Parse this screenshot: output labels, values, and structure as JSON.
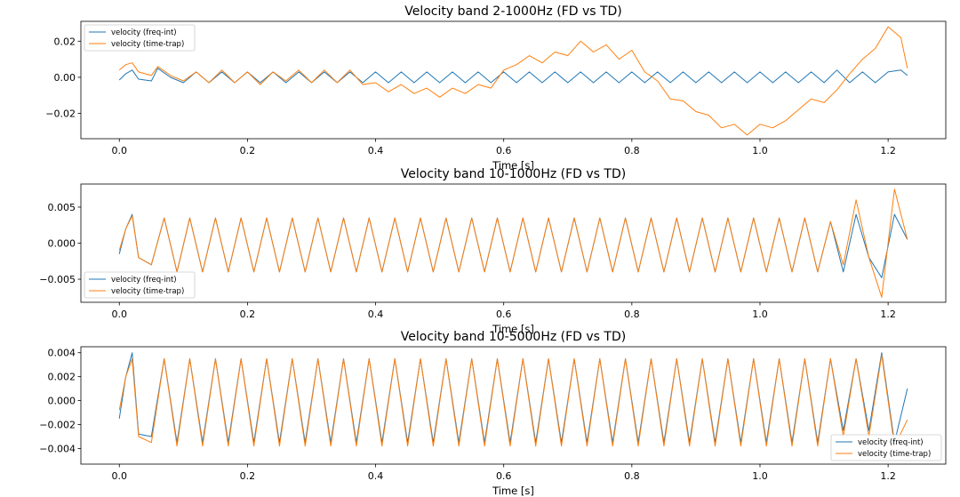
{
  "chart_data": [
    {
      "type": "line",
      "title": "Velocity band 2-1000Hz (FD vs TD)",
      "xlabel": "Time [s]",
      "xlim": [
        -0.06,
        1.29
      ],
      "ylim": [
        -0.034,
        0.031
      ],
      "xticks": [
        0.0,
        0.2,
        0.4,
        0.6,
        0.8,
        1.0,
        1.2
      ],
      "xtick_labels": [
        "0.0",
        "0.2",
        "0.4",
        "0.6",
        "0.8",
        "1.0",
        "1.2"
      ],
      "yticks": [
        -0.02,
        0.0,
        0.02
      ],
      "ytick_labels": [
        "−0.02",
        "0.00",
        "0.02"
      ],
      "legend": "upper left",
      "grid": false,
      "series": [
        {
          "name": "velocity (freq-int)",
          "color": "#1f77b4",
          "x": [
            0.0,
            0.01,
            0.02,
            0.03,
            0.05,
            0.06,
            0.08,
            0.1,
            0.12,
            0.14,
            0.16,
            0.18,
            0.2,
            0.22,
            0.24,
            0.26,
            0.28,
            0.3,
            0.32,
            0.34,
            0.36,
            0.38,
            0.4,
            0.42,
            0.44,
            0.46,
            0.48,
            0.5,
            0.52,
            0.54,
            0.56,
            0.58,
            0.6,
            0.62,
            0.64,
            0.66,
            0.68,
            0.7,
            0.72,
            0.74,
            0.76,
            0.78,
            0.8,
            0.82,
            0.84,
            0.86,
            0.88,
            0.9,
            0.92,
            0.94,
            0.96,
            0.98,
            1.0,
            1.02,
            1.04,
            1.06,
            1.08,
            1.1,
            1.12,
            1.14,
            1.16,
            1.18,
            1.2,
            1.22,
            1.23
          ],
          "y": [
            -0.0015,
            0.002,
            0.004,
            -0.001,
            -0.002,
            0.005,
            0.0,
            -0.003,
            0.003,
            -0.003,
            0.003,
            -0.003,
            0.003,
            -0.003,
            0.003,
            -0.003,
            0.003,
            -0.003,
            0.003,
            -0.003,
            0.003,
            -0.003,
            0.003,
            -0.003,
            0.003,
            -0.003,
            0.003,
            -0.003,
            0.003,
            -0.003,
            0.003,
            -0.003,
            0.003,
            -0.003,
            0.003,
            -0.003,
            0.003,
            -0.003,
            0.003,
            -0.003,
            0.003,
            -0.003,
            0.003,
            -0.003,
            0.003,
            -0.003,
            0.003,
            -0.003,
            0.003,
            -0.003,
            0.003,
            -0.003,
            0.003,
            -0.003,
            0.003,
            -0.003,
            0.003,
            -0.003,
            0.004,
            -0.003,
            0.003,
            -0.003,
            0.003,
            0.004,
            0.001
          ]
        },
        {
          "name": "velocity (time-trap)",
          "color": "#ff7f0e",
          "x": [
            0.0,
            0.01,
            0.02,
            0.03,
            0.05,
            0.06,
            0.08,
            0.1,
            0.12,
            0.14,
            0.16,
            0.18,
            0.2,
            0.22,
            0.24,
            0.26,
            0.28,
            0.3,
            0.32,
            0.34,
            0.36,
            0.38,
            0.4,
            0.42,
            0.44,
            0.46,
            0.48,
            0.5,
            0.52,
            0.54,
            0.56,
            0.58,
            0.6,
            0.62,
            0.64,
            0.66,
            0.68,
            0.7,
            0.72,
            0.74,
            0.76,
            0.78,
            0.8,
            0.82,
            0.84,
            0.86,
            0.88,
            0.9,
            0.92,
            0.94,
            0.96,
            0.98,
            1.0,
            1.02,
            1.04,
            1.06,
            1.08,
            1.1,
            1.12,
            1.14,
            1.16,
            1.18,
            1.2,
            1.22,
            1.23
          ],
          "y": [
            0.004,
            0.007,
            0.008,
            0.003,
            0.001,
            0.006,
            0.001,
            -0.002,
            0.003,
            -0.003,
            0.004,
            -0.003,
            0.003,
            -0.004,
            0.003,
            -0.002,
            0.004,
            -0.003,
            0.004,
            -0.003,
            0.004,
            -0.004,
            -0.003,
            -0.008,
            -0.004,
            -0.009,
            -0.006,
            -0.011,
            -0.006,
            -0.009,
            -0.004,
            -0.006,
            0.004,
            0.007,
            0.012,
            0.008,
            0.014,
            0.012,
            0.02,
            0.014,
            0.018,
            0.01,
            0.015,
            0.003,
            -0.002,
            -0.012,
            -0.013,
            -0.019,
            -0.021,
            -0.028,
            -0.026,
            -0.032,
            -0.026,
            -0.028,
            -0.024,
            -0.018,
            -0.012,
            -0.014,
            -0.007,
            0.002,
            0.01,
            0.016,
            0.028,
            0.022,
            0.005
          ]
        }
      ]
    },
    {
      "type": "line",
      "title": "Velocity band 10-1000Hz (FD vs TD)",
      "xlabel": "Time [s]",
      "xlim": [
        -0.06,
        1.29
      ],
      "ylim": [
        -0.0082,
        0.0082
      ],
      "xticks": [
        0.0,
        0.2,
        0.4,
        0.6,
        0.8,
        1.0,
        1.2
      ],
      "xtick_labels": [
        "0.0",
        "0.2",
        "0.4",
        "0.6",
        "0.8",
        "1.0",
        "1.2"
      ],
      "yticks": [
        -0.005,
        0.0,
        0.005
      ],
      "ytick_labels": [
        "−0.005",
        "0.000",
        "0.005"
      ],
      "legend": "lower left",
      "grid": false,
      "series": [
        {
          "name": "velocity (freq-int)",
          "color": "#1f77b4",
          "x": [
            0.0,
            0.01,
            0.02,
            0.03,
            0.05,
            0.07,
            0.09,
            0.11,
            0.13,
            0.15,
            0.17,
            0.19,
            0.21,
            0.23,
            0.25,
            0.27,
            0.29,
            0.31,
            0.33,
            0.35,
            0.37,
            0.39,
            0.41,
            0.43,
            0.45,
            0.47,
            0.49,
            0.51,
            0.53,
            0.55,
            0.57,
            0.59,
            0.61,
            0.63,
            0.65,
            0.67,
            0.69,
            0.71,
            0.73,
            0.75,
            0.77,
            0.79,
            0.81,
            0.83,
            0.85,
            0.87,
            0.89,
            0.91,
            0.93,
            0.95,
            0.97,
            0.99,
            1.01,
            1.03,
            1.05,
            1.07,
            1.09,
            1.11,
            1.13,
            1.15,
            1.17,
            1.19,
            1.21,
            1.23
          ],
          "y": [
            -0.0015,
            0.002,
            0.004,
            -0.002,
            -0.003,
            0.0035,
            -0.004,
            0.0035,
            -0.004,
            0.0035,
            -0.004,
            0.0035,
            -0.004,
            0.0035,
            -0.004,
            0.0035,
            -0.004,
            0.0035,
            -0.004,
            0.0035,
            -0.004,
            0.0035,
            -0.004,
            0.0035,
            -0.004,
            0.0035,
            -0.004,
            0.0035,
            -0.004,
            0.0035,
            -0.004,
            0.0035,
            -0.004,
            0.0035,
            -0.004,
            0.0035,
            -0.004,
            0.0035,
            -0.004,
            0.0035,
            -0.004,
            0.0035,
            -0.004,
            0.0035,
            -0.004,
            0.0035,
            -0.004,
            0.0035,
            -0.004,
            0.0035,
            -0.004,
            0.0035,
            -0.004,
            0.0035,
            -0.004,
            0.0035,
            -0.004,
            0.003,
            -0.004,
            0.004,
            -0.002,
            -0.0048,
            0.004,
            0.0005
          ]
        },
        {
          "name": "velocity (time-trap)",
          "color": "#ff7f0e",
          "x": [
            0.0,
            0.01,
            0.02,
            0.03,
            0.05,
            0.07,
            0.09,
            0.11,
            0.13,
            0.15,
            0.17,
            0.19,
            0.21,
            0.23,
            0.25,
            0.27,
            0.29,
            0.31,
            0.33,
            0.35,
            0.37,
            0.39,
            0.41,
            0.43,
            0.45,
            0.47,
            0.49,
            0.51,
            0.53,
            0.55,
            0.57,
            0.59,
            0.61,
            0.63,
            0.65,
            0.67,
            0.69,
            0.71,
            0.73,
            0.75,
            0.77,
            0.79,
            0.81,
            0.83,
            0.85,
            0.87,
            0.89,
            0.91,
            0.93,
            0.95,
            0.97,
            0.99,
            1.01,
            1.03,
            1.05,
            1.07,
            1.09,
            1.11,
            1.13,
            1.15,
            1.17,
            1.19,
            1.21,
            1.23
          ],
          "y": [
            -0.001,
            0.002,
            0.0038,
            -0.002,
            -0.003,
            0.0035,
            -0.004,
            0.0035,
            -0.004,
            0.0035,
            -0.004,
            0.0035,
            -0.004,
            0.0035,
            -0.004,
            0.0035,
            -0.004,
            0.0035,
            -0.004,
            0.0035,
            -0.004,
            0.0035,
            -0.004,
            0.0035,
            -0.004,
            0.0035,
            -0.004,
            0.0035,
            -0.004,
            0.0035,
            -0.004,
            0.0035,
            -0.004,
            0.0035,
            -0.004,
            0.0035,
            -0.004,
            0.0035,
            -0.004,
            0.0035,
            -0.004,
            0.0035,
            -0.004,
            0.0035,
            -0.004,
            0.0035,
            -0.004,
            0.0035,
            -0.004,
            0.0035,
            -0.004,
            0.0035,
            -0.004,
            0.0035,
            -0.004,
            0.0035,
            -0.004,
            0.003,
            -0.003,
            0.006,
            -0.002,
            -0.0075,
            0.0075,
            0.0005
          ]
        }
      ]
    },
    {
      "type": "line",
      "title": "Velocity band 10-5000Hz (FD vs TD)",
      "xlabel": "Time [s]",
      "xlim": [
        -0.06,
        1.29
      ],
      "ylim": [
        -0.0053,
        0.0045
      ],
      "xticks": [
        0.0,
        0.2,
        0.4,
        0.6,
        0.8,
        1.0,
        1.2
      ],
      "xtick_labels": [
        "0.0",
        "0.2",
        "0.4",
        "0.6",
        "0.8",
        "1.0",
        "1.2"
      ],
      "yticks": [
        -0.004,
        -0.002,
        0.0,
        0.002,
        0.004
      ],
      "ytick_labels": [
        "−0.004",
        "−0.002",
        "0.000",
        "0.002",
        "0.004"
      ],
      "legend": "lower right",
      "grid": false,
      "series": [
        {
          "name": "velocity (freq-int)",
          "color": "#1f77b4",
          "x": [
            0.0,
            0.01,
            0.02,
            0.03,
            0.05,
            0.07,
            0.09,
            0.11,
            0.13,
            0.15,
            0.17,
            0.19,
            0.21,
            0.23,
            0.25,
            0.27,
            0.29,
            0.31,
            0.33,
            0.35,
            0.37,
            0.39,
            0.41,
            0.43,
            0.45,
            0.47,
            0.49,
            0.51,
            0.53,
            0.55,
            0.57,
            0.59,
            0.61,
            0.63,
            0.65,
            0.67,
            0.69,
            0.71,
            0.73,
            0.75,
            0.77,
            0.79,
            0.81,
            0.83,
            0.85,
            0.87,
            0.89,
            0.91,
            0.93,
            0.95,
            0.97,
            0.99,
            1.01,
            1.03,
            1.05,
            1.07,
            1.09,
            1.11,
            1.13,
            1.15,
            1.17,
            1.19,
            1.21,
            1.23
          ],
          "y": [
            -0.0015,
            0.002,
            0.004,
            -0.0028,
            -0.003,
            0.0035,
            -0.0035,
            0.0035,
            -0.0035,
            0.0035,
            -0.0035,
            0.0035,
            -0.0035,
            0.0035,
            -0.0035,
            0.0035,
            -0.0035,
            0.0035,
            -0.0035,
            0.0035,
            -0.0035,
            0.0035,
            -0.0035,
            0.0035,
            -0.0035,
            0.0035,
            -0.0035,
            0.0035,
            -0.0035,
            0.0035,
            -0.0035,
            0.0035,
            -0.0035,
            0.0035,
            -0.0035,
            0.0035,
            -0.0035,
            0.0035,
            -0.0035,
            0.0035,
            -0.0035,
            0.0035,
            -0.0035,
            0.0035,
            -0.0035,
            0.0035,
            -0.0035,
            0.0035,
            -0.0035,
            0.0035,
            -0.0035,
            0.0035,
            -0.0035,
            0.0035,
            -0.0035,
            0.0035,
            -0.0035,
            0.0035,
            -0.0025,
            0.0035,
            -0.0025,
            0.004,
            -0.0035,
            0.001
          ]
        },
        {
          "name": "velocity (time-trap)",
          "color": "#ff7f0e",
          "x": [
            0.0,
            0.01,
            0.02,
            0.03,
            0.05,
            0.07,
            0.09,
            0.11,
            0.13,
            0.15,
            0.17,
            0.19,
            0.21,
            0.23,
            0.25,
            0.27,
            0.29,
            0.31,
            0.33,
            0.35,
            0.37,
            0.39,
            0.41,
            0.43,
            0.45,
            0.47,
            0.49,
            0.51,
            0.53,
            0.55,
            0.57,
            0.59,
            0.61,
            0.63,
            0.65,
            0.67,
            0.69,
            0.71,
            0.73,
            0.75,
            0.77,
            0.79,
            0.81,
            0.83,
            0.85,
            0.87,
            0.89,
            0.91,
            0.93,
            0.95,
            0.97,
            0.99,
            1.01,
            1.03,
            1.05,
            1.07,
            1.09,
            1.11,
            1.13,
            1.15,
            1.17,
            1.19,
            1.21,
            1.23
          ],
          "y": [
            -0.0008,
            0.002,
            0.0035,
            -0.003,
            -0.0035,
            0.0035,
            -0.0038,
            0.0035,
            -0.0038,
            0.0035,
            -0.0038,
            0.0035,
            -0.0038,
            0.0035,
            -0.0038,
            0.0035,
            -0.0038,
            0.0035,
            -0.0038,
            0.0035,
            -0.0038,
            0.0035,
            -0.0038,
            0.0035,
            -0.0038,
            0.0035,
            -0.0038,
            0.0035,
            -0.0038,
            0.0035,
            -0.0038,
            0.0035,
            -0.0038,
            0.0035,
            -0.0038,
            0.0035,
            -0.0038,
            0.0035,
            -0.0038,
            0.0035,
            -0.0038,
            0.0035,
            -0.0038,
            0.0035,
            -0.0038,
            0.0035,
            -0.0038,
            0.0035,
            -0.0038,
            0.0035,
            -0.0038,
            0.0035,
            -0.0038,
            0.0035,
            -0.0038,
            0.0035,
            -0.0038,
            0.0035,
            -0.003,
            0.0035,
            -0.003,
            0.0038,
            -0.0038,
            -0.0016
          ]
        }
      ]
    }
  ]
}
